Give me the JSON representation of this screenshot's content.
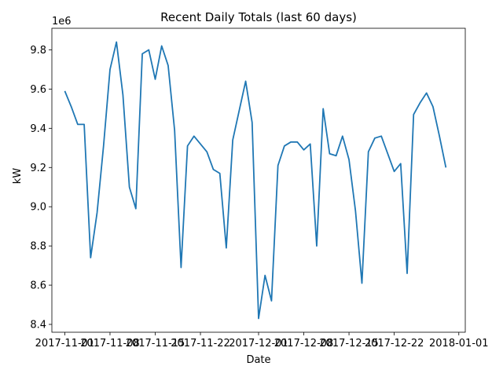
{
  "chart_data": {
    "type": "line",
    "title": "Recent Daily Totals (last 60 days)",
    "xlabel": "Date",
    "ylabel": "kW",
    "y_offset_label": "1e6",
    "line_color": "#1f77b4",
    "grid": false,
    "x_ticks": [
      "2017-11-01",
      "2017-11-08",
      "2017-11-15",
      "2017-11-22",
      "2017-12-01",
      "2017-12-08",
      "2017-12-15",
      "2017-12-22",
      "2018-01-01"
    ],
    "y_ticks": [
      "8.4",
      "8.6",
      "8.8",
      "9.0",
      "9.2",
      "9.4",
      "9.6",
      "9.8"
    ],
    "xlim": [
      "2017-10-30",
      "2018-01-02"
    ],
    "ylim": [
      8.36,
      9.91
    ],
    "series": [
      {
        "x": [
          "2017-11-01",
          "2017-11-02",
          "2017-11-03",
          "2017-11-04",
          "2017-11-05",
          "2017-11-06",
          "2017-11-07",
          "2017-11-08",
          "2017-11-09",
          "2017-11-10",
          "2017-11-11",
          "2017-11-12",
          "2017-11-13",
          "2017-11-14",
          "2017-11-15",
          "2017-11-16",
          "2017-11-17",
          "2017-11-18",
          "2017-11-19",
          "2017-11-20",
          "2017-11-21",
          "2017-11-22",
          "2017-11-23",
          "2017-11-24",
          "2017-11-25",
          "2017-11-26",
          "2017-11-27",
          "2017-11-28",
          "2017-11-29",
          "2017-11-30",
          "2017-12-01",
          "2017-12-02",
          "2017-12-03",
          "2017-12-04",
          "2017-12-05",
          "2017-12-06",
          "2017-12-07",
          "2017-12-08",
          "2017-12-09",
          "2017-12-10",
          "2017-12-11",
          "2017-12-12",
          "2017-12-13",
          "2017-12-14",
          "2017-12-15",
          "2017-12-16",
          "2017-12-17",
          "2017-12-18",
          "2017-12-19",
          "2017-12-20",
          "2017-12-21",
          "2017-12-22",
          "2017-12-23",
          "2017-12-24",
          "2017-12-25",
          "2017-12-26",
          "2017-12-27",
          "2017-12-28",
          "2017-12-29",
          "2017-12-30"
        ],
        "values": [
          9.59,
          9.51,
          9.42,
          9.42,
          8.74,
          8.97,
          9.31,
          9.7,
          9.84,
          9.57,
          9.1,
          8.99,
          9.78,
          9.8,
          9.65,
          9.82,
          9.72,
          9.39,
          8.69,
          9.31,
          9.36,
          9.32,
          9.28,
          9.19,
          9.17,
          8.79,
          9.34,
          9.49,
          9.64,
          9.43,
          8.43,
          8.65,
          8.52,
          9.21,
          9.31,
          9.33,
          9.33,
          9.29,
          9.32,
          8.8,
          9.5,
          9.27,
          9.26,
          9.36,
          9.24,
          8.98,
          8.61,
          9.28,
          9.35,
          9.36,
          9.27,
          9.18,
          9.22,
          8.66,
          9.47,
          9.53,
          9.58,
          9.51,
          9.36,
          9.2
        ]
      }
    ]
  }
}
